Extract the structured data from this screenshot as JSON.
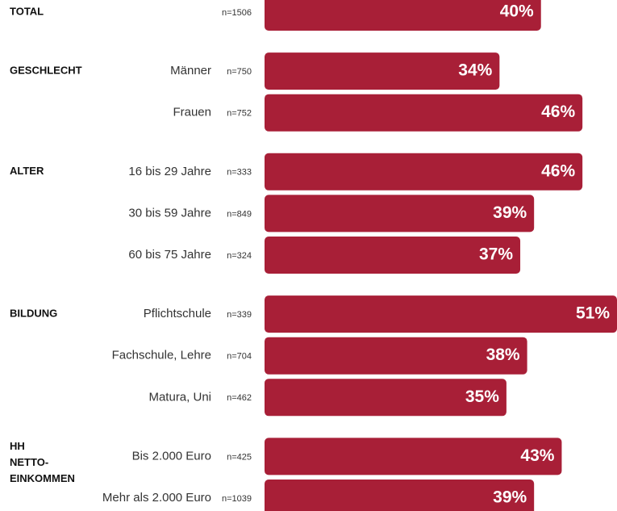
{
  "chart_data": {
    "type": "bar",
    "orientation": "horizontal",
    "color": "#a81f37",
    "groups": [
      [
        "TOTAL"
      ],
      [
        "GESCHLECHT"
      ],
      null,
      [
        "ALTER"
      ],
      null,
      null,
      [
        "BILDUNG"
      ],
      null,
      null,
      [
        "HH",
        "NETTO-",
        "EINKOMMEN"
      ],
      null
    ],
    "categories": [
      null,
      "Männer",
      "Frauen",
      "16 bis 29 Jahre",
      "30 bis 59 Jahre",
      "60 bis 75 Jahre",
      "Pflichtschule",
      "Fachschule, Lehre",
      "Matura, Uni",
      "Bis 2.000 Euro",
      "Mehr als 2.000 Euro"
    ],
    "n_labels": [
      "n=1506",
      "n=750",
      "n=752",
      "n=333",
      "n=849",
      "n=324",
      "n=339",
      "n=704",
      "n=462",
      "n=425",
      "n=1039"
    ],
    "values": [
      40,
      34,
      46,
      46,
      39,
      37,
      51,
      38,
      35,
      43,
      39
    ],
    "value_labels": [
      "40%",
      "34%",
      "46%",
      "46%",
      "39%",
      "37%",
      "51%",
      "38%",
      "35%",
      "43%",
      "39%"
    ]
  }
}
